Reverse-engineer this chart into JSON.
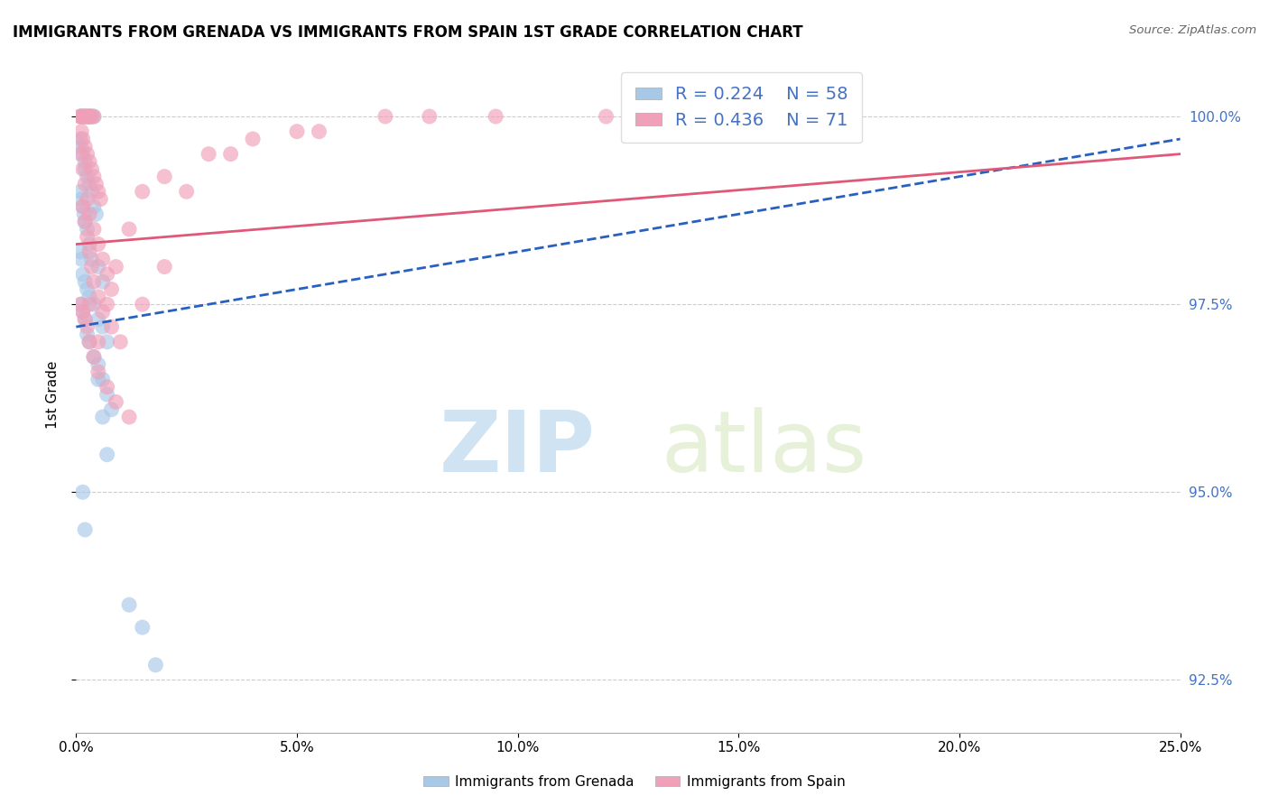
{
  "title": "IMMIGRANTS FROM GRENADA VS IMMIGRANTS FROM SPAIN 1ST GRADE CORRELATION CHART",
  "source": "Source: ZipAtlas.com",
  "ylabel_label": "1st Grade",
  "legend_blue_r": "R = 0.224",
  "legend_blue_n": "N = 58",
  "legend_pink_r": "R = 0.436",
  "legend_pink_n": "N = 71",
  "legend_label_blue": "Immigrants from Grenada",
  "legend_label_pink": "Immigrants from Spain",
  "watermark_zip": "ZIP",
  "watermark_atlas": "atlas",
  "blue_scatter_x": [
    0.1,
    0.1,
    0.15,
    0.2,
    0.2,
    0.25,
    0.3,
    0.3,
    0.35,
    0.4,
    0.1,
    0.1,
    0.15,
    0.2,
    0.2,
    0.25,
    0.3,
    0.35,
    0.4,
    0.45,
    0.1,
    0.12,
    0.15,
    0.18,
    0.2,
    0.25,
    0.3,
    0.35,
    0.5,
    0.6,
    0.1,
    0.12,
    0.15,
    0.2,
    0.25,
    0.3,
    0.4,
    0.5,
    0.6,
    0.7,
    0.12,
    0.15,
    0.2,
    0.25,
    0.3,
    0.4,
    0.5,
    0.6,
    0.7,
    0.8,
    0.5,
    0.6,
    0.7,
    0.15,
    0.2,
    1.2,
    1.5,
    1.8
  ],
  "blue_scatter_y": [
    100.0,
    100.0,
    100.0,
    100.0,
    100.0,
    100.0,
    100.0,
    100.0,
    100.0,
    100.0,
    99.7,
    99.6,
    99.5,
    99.4,
    99.3,
    99.2,
    99.1,
    99.0,
    98.8,
    98.7,
    99.0,
    98.9,
    98.8,
    98.7,
    98.6,
    98.5,
    98.3,
    98.1,
    98.0,
    97.8,
    98.2,
    98.1,
    97.9,
    97.8,
    97.7,
    97.6,
    97.5,
    97.3,
    97.2,
    97.0,
    97.5,
    97.4,
    97.3,
    97.1,
    97.0,
    96.8,
    96.7,
    96.5,
    96.3,
    96.1,
    96.5,
    96.0,
    95.5,
    95.0,
    94.5,
    93.5,
    93.2,
    92.7
  ],
  "pink_scatter_x": [
    0.1,
    0.1,
    0.15,
    0.2,
    0.2,
    0.25,
    0.3,
    0.3,
    0.35,
    0.4,
    0.12,
    0.15,
    0.2,
    0.25,
    0.3,
    0.35,
    0.4,
    0.45,
    0.5,
    0.55,
    0.1,
    0.15,
    0.2,
    0.25,
    0.3,
    0.4,
    0.5,
    0.6,
    0.7,
    0.8,
    0.15,
    0.2,
    0.25,
    0.3,
    0.35,
    0.4,
    0.5,
    0.6,
    0.8,
    1.0,
    0.1,
    0.15,
    0.2,
    0.25,
    0.3,
    0.4,
    0.5,
    0.7,
    0.9,
    1.2,
    1.5,
    2.0,
    2.5,
    3.0,
    4.0,
    5.0,
    8.0,
    12.0,
    17.0,
    0.3,
    0.5,
    0.7,
    0.9,
    1.2,
    1.5,
    2.0,
    3.5,
    5.5,
    7.0,
    9.5,
    14.0
  ],
  "pink_scatter_y": [
    100.0,
    100.0,
    100.0,
    100.0,
    100.0,
    100.0,
    100.0,
    100.0,
    100.0,
    100.0,
    99.8,
    99.7,
    99.6,
    99.5,
    99.4,
    99.3,
    99.2,
    99.1,
    99.0,
    98.9,
    99.5,
    99.3,
    99.1,
    98.9,
    98.7,
    98.5,
    98.3,
    98.1,
    97.9,
    97.7,
    98.8,
    98.6,
    98.4,
    98.2,
    98.0,
    97.8,
    97.6,
    97.4,
    97.2,
    97.0,
    97.5,
    97.4,
    97.3,
    97.2,
    97.0,
    96.8,
    96.6,
    96.4,
    96.2,
    96.0,
    97.5,
    98.0,
    99.0,
    99.5,
    99.7,
    99.8,
    100.0,
    100.0,
    100.0,
    97.5,
    97.0,
    97.5,
    98.0,
    98.5,
    99.0,
    99.2,
    99.5,
    99.8,
    100.0,
    100.0,
    100.0
  ],
  "xmin": 0.0,
  "xmax": 25.0,
  "ymin": 91.8,
  "ymax": 100.8,
  "yticks": [
    92.5,
    95.0,
    97.5,
    100.0
  ],
  "xticks": [
    0,
    5,
    10,
    15,
    20,
    25
  ],
  "blue_color": "#A8C8E8",
  "pink_color": "#F0A0B8",
  "blue_line_color": "#2860C0",
  "pink_line_color": "#E05878",
  "grid_color": "#CCCCCC",
  "background_color": "#FFFFFF",
  "title_fontsize": 12,
  "axis_fontsize": 11,
  "right_tick_color": "#4472C4"
}
